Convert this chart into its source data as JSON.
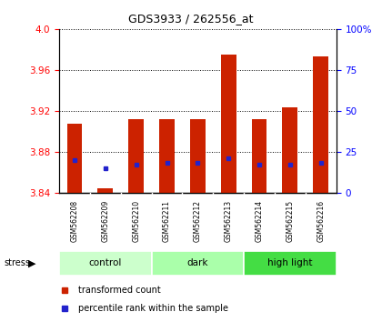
{
  "title": "GDS3933 / 262556_at",
  "samples": [
    "GSM562208",
    "GSM562209",
    "GSM562210",
    "GSM562211",
    "GSM562212",
    "GSM562213",
    "GSM562214",
    "GSM562215",
    "GSM562216"
  ],
  "transformed_counts": [
    3.908,
    3.845,
    3.912,
    3.912,
    3.912,
    3.975,
    3.912,
    3.924,
    3.973
  ],
  "percentile_y": [
    3.872,
    3.864,
    3.868,
    3.87,
    3.87,
    3.874,
    3.868,
    3.868,
    3.87
  ],
  "y_min": 3.84,
  "y_max": 4.0,
  "y_ticks": [
    3.84,
    3.88,
    3.92,
    3.96,
    4.0
  ],
  "right_y_ticks_labels": [
    "0",
    "25",
    "50",
    "75",
    "100%"
  ],
  "groups": [
    {
      "label": "control",
      "start": 0,
      "end": 3,
      "color": "#ccffcc"
    },
    {
      "label": "dark",
      "start": 3,
      "end": 6,
      "color": "#aaffaa"
    },
    {
      "label": "high light",
      "start": 6,
      "end": 9,
      "color": "#44dd44"
    }
  ],
  "bar_color": "#cc2200",
  "percentile_color": "#2222cc",
  "bar_width": 0.5,
  "background_color": "#ffffff",
  "tick_label_bg": "#c8c8c8",
  "legend_items": [
    {
      "label": "transformed count",
      "color": "#cc2200"
    },
    {
      "label": "percentile rank within the sample",
      "color": "#2222cc"
    }
  ]
}
